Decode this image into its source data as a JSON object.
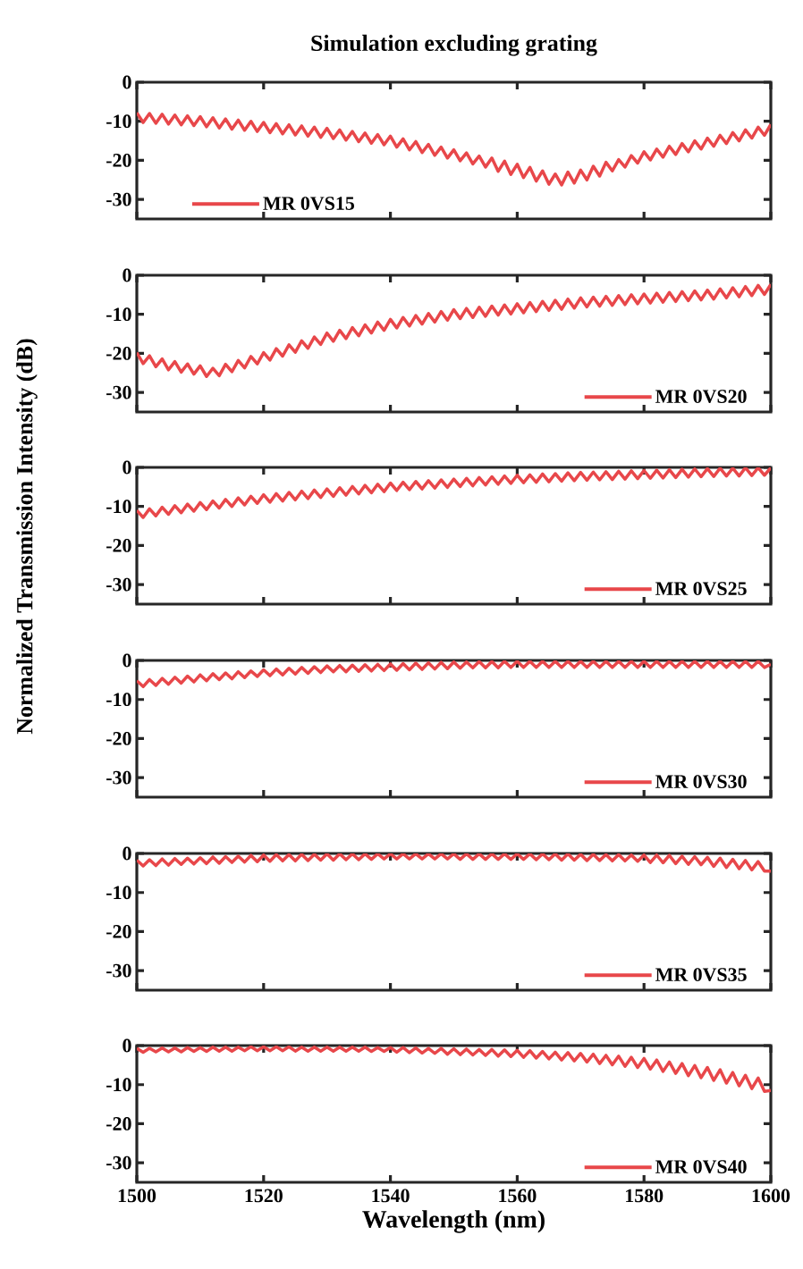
{
  "chart_data": [
    {
      "type": "line",
      "title": "Simulation excluding grating",
      "ylabel": "Normalized Transmission Intensity (dB)",
      "xlim": [
        1500,
        1600
      ],
      "xticks": [
        1500,
        1520,
        1540,
        1560,
        1580,
        1600
      ],
      "ylim": [
        -35,
        0
      ],
      "yticks": [
        -30,
        -20,
        -10,
        0
      ],
      "tick_labels": "y",
      "legend": "bottom left",
      "x": [
        1500,
        1501,
        1502,
        1503,
        1504,
        1505,
        1506,
        1507,
        1508,
        1509,
        1510,
        1511,
        1512,
        1513,
        1514,
        1515,
        1516,
        1517,
        1518,
        1519,
        1520,
        1521,
        1522,
        1523,
        1524,
        1525,
        1526,
        1527,
        1528,
        1529,
        1530,
        1531,
        1532,
        1533,
        1534,
        1535,
        1536,
        1537,
        1538,
        1539,
        1540,
        1541,
        1542,
        1543,
        1544,
        1545,
        1546,
        1547,
        1548,
        1549,
        1550,
        1551,
        1552,
        1553,
        1554,
        1555,
        1556,
        1557,
        1558,
        1559,
        1560,
        1561,
        1562,
        1563,
        1564,
        1565,
        1566,
        1567,
        1568,
        1569,
        1570,
        1571,
        1572,
        1573,
        1574,
        1575,
        1576,
        1577,
        1578,
        1579,
        1580,
        1581,
        1582,
        1583,
        1584,
        1585,
        1586,
        1587,
        1588,
        1589,
        1590,
        1591,
        1592,
        1593,
        1594,
        1595,
        1596,
        1597,
        1598,
        1599,
        1600
      ],
      "series": [
        {
          "name": "MR 0VS15",
          "color": "#e8474a",
          "values": [
            -7.8,
            -10.3,
            -8.0,
            -10.5,
            -8.2,
            -10.7,
            -8.4,
            -10.9,
            -8.6,
            -11.1,
            -8.8,
            -11.4,
            -9.1,
            -11.7,
            -9.4,
            -12.0,
            -9.7,
            -12.3,
            -10.0,
            -12.6,
            -10.3,
            -12.9,
            -10.6,
            -13.2,
            -10.9,
            -13.5,
            -11.2,
            -13.8,
            -11.5,
            -14.1,
            -11.8,
            -14.4,
            -12.2,
            -14.8,
            -12.6,
            -15.2,
            -13.0,
            -15.6,
            -13.4,
            -16.0,
            -13.8,
            -16.6,
            -14.5,
            -17.3,
            -15.2,
            -18.0,
            -15.9,
            -18.7,
            -16.6,
            -19.4,
            -17.3,
            -20.1,
            -18.1,
            -20.9,
            -18.9,
            -21.7,
            -19.4,
            -22.8,
            -20.2,
            -23.6,
            -21.0,
            -24.4,
            -21.8,
            -25.3,
            -22.7,
            -26.1,
            -23.5,
            -26.3,
            -23.0,
            -25.8,
            -22.5,
            -25.0,
            -21.5,
            -24.0,
            -20.5,
            -22.7,
            -19.8,
            -21.7,
            -18.8,
            -20.7,
            -17.8,
            -19.9,
            -17.1,
            -19.2,
            -16.4,
            -18.5,
            -15.7,
            -17.8,
            -15.0,
            -17.1,
            -14.3,
            -16.4,
            -13.6,
            -15.7,
            -12.9,
            -15.0,
            -12.2,
            -14.3,
            -11.5,
            -13.6,
            -10.8
          ]
        }
      ]
    },
    {
      "type": "line",
      "xlim": [
        1500,
        1600
      ],
      "xticks": [
        1500,
        1520,
        1540,
        1560,
        1580,
        1600
      ],
      "ylim": [
        -35,
        0
      ],
      "yticks": [
        -30,
        -20,
        -10,
        0
      ],
      "tick_labels": "y",
      "legend": "bottom right",
      "x": [
        1500,
        1501,
        1502,
        1503,
        1504,
        1505,
        1506,
        1507,
        1508,
        1509,
        1510,
        1511,
        1512,
        1513,
        1514,
        1515,
        1516,
        1517,
        1518,
        1519,
        1520,
        1521,
        1522,
        1523,
        1524,
        1525,
        1526,
        1527,
        1528,
        1529,
        1530,
        1531,
        1532,
        1533,
        1534,
        1535,
        1536,
        1537,
        1538,
        1539,
        1540,
        1541,
        1542,
        1543,
        1544,
        1545,
        1546,
        1547,
        1548,
        1549,
        1550,
        1551,
        1552,
        1553,
        1554,
        1555,
        1556,
        1557,
        1558,
        1559,
        1560,
        1561,
        1562,
        1563,
        1564,
        1565,
        1566,
        1567,
        1568,
        1569,
        1570,
        1571,
        1572,
        1573,
        1574,
        1575,
        1576,
        1577,
        1578,
        1579,
        1580,
        1581,
        1582,
        1583,
        1584,
        1585,
        1586,
        1587,
        1588,
        1589,
        1590,
        1591,
        1592,
        1593,
        1594,
        1595,
        1596,
        1597,
        1598,
        1599,
        1600
      ],
      "series": [
        {
          "name": "MR 0VS20",
          "color": "#e8474a",
          "values": [
            -19.8,
            -22.6,
            -20.6,
            -23.4,
            -21.4,
            -24.2,
            -22.1,
            -24.8,
            -22.7,
            -25.3,
            -23.2,
            -25.9,
            -23.8,
            -25.7,
            -22.8,
            -24.7,
            -21.8,
            -23.7,
            -20.8,
            -22.7,
            -19.8,
            -21.7,
            -18.8,
            -20.7,
            -17.8,
            -19.7,
            -16.8,
            -18.7,
            -15.8,
            -17.7,
            -14.8,
            -16.9,
            -14.1,
            -16.2,
            -13.4,
            -15.5,
            -12.7,
            -14.8,
            -12.0,
            -14.1,
            -11.3,
            -13.5,
            -10.8,
            -13.0,
            -10.3,
            -12.5,
            -9.8,
            -12.0,
            -9.3,
            -11.5,
            -8.8,
            -11.1,
            -8.5,
            -10.8,
            -8.2,
            -10.5,
            -7.9,
            -10.2,
            -7.6,
            -9.9,
            -7.3,
            -9.6,
            -7.0,
            -9.3,
            -6.7,
            -9.0,
            -6.4,
            -8.7,
            -6.1,
            -8.4,
            -5.8,
            -8.1,
            -5.6,
            -7.9,
            -5.4,
            -7.7,
            -5.2,
            -7.5,
            -5.0,
            -7.3,
            -4.8,
            -7.1,
            -4.6,
            -6.9,
            -4.4,
            -6.7,
            -4.2,
            -6.5,
            -4.0,
            -6.3,
            -3.8,
            -6.1,
            -3.5,
            -5.8,
            -3.2,
            -5.5,
            -2.9,
            -5.2,
            -2.6,
            -4.9,
            -2.3
          ]
        }
      ]
    },
    {
      "type": "line",
      "xlim": [
        1500,
        1600
      ],
      "xticks": [
        1500,
        1520,
        1540,
        1560,
        1580,
        1600
      ],
      "ylim": [
        -35,
        0
      ],
      "yticks": [
        -30,
        -20,
        -10,
        0
      ],
      "tick_labels": "y",
      "legend": "bottom right",
      "x": [
        1500,
        1501,
        1502,
        1503,
        1504,
        1505,
        1506,
        1507,
        1508,
        1509,
        1510,
        1511,
        1512,
        1513,
        1514,
        1515,
        1516,
        1517,
        1518,
        1519,
        1520,
        1521,
        1522,
        1523,
        1524,
        1525,
        1526,
        1527,
        1528,
        1529,
        1530,
        1531,
        1532,
        1533,
        1534,
        1535,
        1536,
        1537,
        1538,
        1539,
        1540,
        1541,
        1542,
        1543,
        1544,
        1545,
        1546,
        1547,
        1548,
        1549,
        1550,
        1551,
        1552,
        1553,
        1554,
        1555,
        1556,
        1557,
        1558,
        1559,
        1560,
        1561,
        1562,
        1563,
        1564,
        1565,
        1566,
        1567,
        1568,
        1569,
        1570,
        1571,
        1572,
        1573,
        1574,
        1575,
        1576,
        1577,
        1578,
        1579,
        1580,
        1581,
        1582,
        1583,
        1584,
        1585,
        1586,
        1587,
        1588,
        1589,
        1590,
        1591,
        1592,
        1593,
        1594,
        1595,
        1596,
        1597,
        1598,
        1599,
        1600
      ],
      "series": [
        {
          "name": "MR 0VS25",
          "color": "#e8474a",
          "values": [
            -11.0,
            -12.8,
            -10.6,
            -12.4,
            -10.2,
            -12.0,
            -9.8,
            -11.6,
            -9.4,
            -11.2,
            -9.0,
            -10.8,
            -8.6,
            -10.4,
            -8.2,
            -10.0,
            -7.8,
            -9.6,
            -7.4,
            -9.2,
            -7.0,
            -8.9,
            -6.7,
            -8.6,
            -6.4,
            -8.3,
            -6.1,
            -8.0,
            -5.8,
            -7.7,
            -5.5,
            -7.4,
            -5.2,
            -7.1,
            -4.9,
            -6.8,
            -4.6,
            -6.5,
            -4.3,
            -6.2,
            -4.0,
            -5.9,
            -3.8,
            -5.7,
            -3.6,
            -5.5,
            -3.4,
            -5.3,
            -3.2,
            -5.1,
            -3.0,
            -4.9,
            -2.8,
            -4.7,
            -2.6,
            -4.5,
            -2.4,
            -4.3,
            -2.2,
            -4.1,
            -2.0,
            -3.9,
            -1.9,
            -3.8,
            -1.7,
            -3.7,
            -1.6,
            -3.5,
            -1.4,
            -3.4,
            -1.3,
            -3.3,
            -1.2,
            -3.2,
            -1.1,
            -3.1,
            -1.0,
            -3.0,
            -0.9,
            -2.9,
            -0.8,
            -2.8,
            -0.7,
            -2.7,
            -0.6,
            -2.6,
            -0.5,
            -2.5,
            -0.4,
            -2.4,
            -0.3,
            -2.3,
            -0.2,
            -2.2,
            -0.2,
            -2.2,
            -0.1,
            -2.1,
            -0.1,
            -2.0,
            -0.1
          ]
        }
      ]
    },
    {
      "type": "line",
      "xlim": [
        1500,
        1600
      ],
      "xticks": [
        1500,
        1520,
        1540,
        1560,
        1580,
        1600
      ],
      "ylim": [
        -35,
        0
      ],
      "yticks": [
        -30,
        -20,
        -10,
        0
      ],
      "tick_labels": "y",
      "legend": "bottom right",
      "x": [
        1500,
        1501,
        1502,
        1503,
        1504,
        1505,
        1506,
        1507,
        1508,
        1509,
        1510,
        1511,
        1512,
        1513,
        1514,
        1515,
        1516,
        1517,
        1518,
        1519,
        1520,
        1521,
        1522,
        1523,
        1524,
        1525,
        1526,
        1527,
        1528,
        1529,
        1530,
        1531,
        1532,
        1533,
        1534,
        1535,
        1536,
        1537,
        1538,
        1539,
        1540,
        1541,
        1542,
        1543,
        1544,
        1545,
        1546,
        1547,
        1548,
        1549,
        1550,
        1551,
        1552,
        1553,
        1554,
        1555,
        1556,
        1557,
        1558,
        1559,
        1560,
        1561,
        1562,
        1563,
        1564,
        1565,
        1566,
        1567,
        1568,
        1569,
        1570,
        1571,
        1572,
        1573,
        1574,
        1575,
        1576,
        1577,
        1578,
        1579,
        1580,
        1581,
        1582,
        1583,
        1584,
        1585,
        1586,
        1587,
        1588,
        1589,
        1590,
        1591,
        1592,
        1593,
        1594,
        1595,
        1596,
        1597,
        1598,
        1599,
        1600
      ],
      "series": [
        {
          "name": "MR 0VS30",
          "color": "#e8474a",
          "values": [
            -5.2,
            -6.7,
            -4.9,
            -6.4,
            -4.6,
            -6.1,
            -4.3,
            -5.8,
            -4.0,
            -5.5,
            -3.7,
            -5.2,
            -3.4,
            -4.9,
            -3.2,
            -4.7,
            -2.9,
            -4.4,
            -2.7,
            -4.1,
            -2.4,
            -3.9,
            -2.2,
            -3.7,
            -2.0,
            -3.5,
            -1.8,
            -3.3,
            -1.6,
            -3.1,
            -1.4,
            -2.9,
            -1.3,
            -2.9,
            -1.2,
            -2.8,
            -1.1,
            -2.7,
            -1.0,
            -2.6,
            -0.9,
            -2.5,
            -0.8,
            -2.4,
            -0.7,
            -2.3,
            -0.6,
            -2.2,
            -0.5,
            -2.1,
            -0.4,
            -2.0,
            -0.4,
            -1.9,
            -0.3,
            -1.9,
            -0.3,
            -1.9,
            -0.2,
            -1.8,
            -0.2,
            -1.8,
            -0.2,
            -1.8,
            -0.2,
            -1.8,
            -0.2,
            -1.8,
            -0.2,
            -1.8,
            -0.2,
            -1.8,
            -0.2,
            -1.8,
            -0.2,
            -1.8,
            -0.2,
            -1.8,
            -0.2,
            -1.8,
            -0.2,
            -1.8,
            -0.2,
            -1.8,
            -0.2,
            -1.8,
            -0.2,
            -1.8,
            -0.2,
            -1.8,
            -0.2,
            -1.8,
            -0.2,
            -1.8,
            -0.2,
            -1.8,
            -0.2,
            -1.8,
            -0.2,
            -1.8,
            -1.0
          ]
        }
      ]
    },
    {
      "type": "line",
      "xlim": [
        1500,
        1600
      ],
      "xticks": [
        1500,
        1520,
        1540,
        1560,
        1580,
        1600
      ],
      "ylim": [
        -35,
        0
      ],
      "yticks": [
        -30,
        -20,
        -10,
        0
      ],
      "tick_labels": "y",
      "legend": "bottom right",
      "x": [
        1500,
        1501,
        1502,
        1503,
        1504,
        1505,
        1506,
        1507,
        1508,
        1509,
        1510,
        1511,
        1512,
        1513,
        1514,
        1515,
        1516,
        1517,
        1518,
        1519,
        1520,
        1521,
        1522,
        1523,
        1524,
        1525,
        1526,
        1527,
        1528,
        1529,
        1530,
        1531,
        1532,
        1533,
        1534,
        1535,
        1536,
        1537,
        1538,
        1539,
        1540,
        1541,
        1542,
        1543,
        1544,
        1545,
        1546,
        1547,
        1548,
        1549,
        1550,
        1551,
        1552,
        1553,
        1554,
        1555,
        1556,
        1557,
        1558,
        1559,
        1560,
        1561,
        1562,
        1563,
        1564,
        1565,
        1566,
        1567,
        1568,
        1569,
        1570,
        1571,
        1572,
        1573,
        1574,
        1575,
        1576,
        1577,
        1578,
        1579,
        1580,
        1581,
        1582,
        1583,
        1584,
        1585,
        1586,
        1587,
        1588,
        1589,
        1590,
        1591,
        1592,
        1593,
        1594,
        1595,
        1596,
        1597,
        1598,
        1599,
        1600
      ],
      "series": [
        {
          "name": "MR 0VS35",
          "color": "#e8474a",
          "values": [
            -1.7,
            -3.2,
            -1.6,
            -3.1,
            -1.4,
            -3.0,
            -1.3,
            -2.8,
            -1.2,
            -2.7,
            -1.1,
            -2.6,
            -0.9,
            -2.5,
            -0.8,
            -2.3,
            -0.7,
            -2.2,
            -0.5,
            -2.1,
            -0.4,
            -2.0,
            -0.3,
            -1.9,
            -0.3,
            -1.9,
            -0.2,
            -1.8,
            -0.2,
            -1.7,
            -0.1,
            -1.7,
            -0.1,
            -1.6,
            -0.1,
            -1.6,
            -0.1,
            -1.5,
            -0.1,
            -1.4,
            -0.1,
            -1.4,
            -0.1,
            -1.4,
            -0.1,
            -1.4,
            -0.1,
            -1.4,
            -0.1,
            -1.4,
            -0.1,
            -1.5,
            -0.1,
            -1.5,
            -0.1,
            -1.5,
            -0.1,
            -1.5,
            -0.1,
            -1.5,
            -0.1,
            -1.5,
            -0.1,
            -1.6,
            -0.1,
            -1.6,
            -0.1,
            -1.7,
            -0.1,
            -1.7,
            -0.2,
            -1.8,
            -0.2,
            -1.8,
            -0.3,
            -1.9,
            -0.3,
            -1.9,
            -0.4,
            -2.0,
            -0.4,
            -2.3,
            -0.4,
            -2.4,
            -0.5,
            -2.6,
            -0.7,
            -2.8,
            -0.8,
            -2.9,
            -1.0,
            -3.3,
            -1.2,
            -3.6,
            -1.5,
            -3.9,
            -1.8,
            -4.2,
            -2.1,
            -4.5,
            -4.5
          ]
        }
      ]
    },
    {
      "type": "line",
      "xlabel": "Wavelength (nm)",
      "xlim": [
        1500,
        1600
      ],
      "xticks": [
        1500,
        1520,
        1540,
        1560,
        1580,
        1600
      ],
      "ylim": [
        -35,
        0
      ],
      "yticks": [
        -30,
        -20,
        -10,
        0
      ],
      "legend": "bottom right",
      "x": [
        1500,
        1501,
        1502,
        1503,
        1504,
        1505,
        1506,
        1507,
        1508,
        1509,
        1510,
        1511,
        1512,
        1513,
        1514,
        1515,
        1516,
        1517,
        1518,
        1519,
        1520,
        1521,
        1522,
        1523,
        1524,
        1525,
        1526,
        1527,
        1528,
        1529,
        1530,
        1531,
        1532,
        1533,
        1534,
        1535,
        1536,
        1537,
        1538,
        1539,
        1540,
        1541,
        1542,
        1543,
        1544,
        1545,
        1546,
        1547,
        1548,
        1549,
        1550,
        1551,
        1552,
        1553,
        1554,
        1555,
        1556,
        1557,
        1558,
        1559,
        1560,
        1561,
        1562,
        1563,
        1564,
        1565,
        1566,
        1567,
        1568,
        1569,
        1570,
        1571,
        1572,
        1573,
        1574,
        1575,
        1576,
        1577,
        1578,
        1579,
        1580,
        1581,
        1582,
        1583,
        1584,
        1585,
        1586,
        1587,
        1588,
        1589,
        1590,
        1591,
        1592,
        1593,
        1594,
        1595,
        1596,
        1597,
        1598,
        1599,
        1600
      ],
      "series": [
        {
          "name": "MR 0VS40",
          "color": "#e8474a",
          "values": [
            -0.7,
            -1.7,
            -0.7,
            -1.6,
            -0.6,
            -1.6,
            -0.6,
            -1.6,
            -0.5,
            -1.5,
            -0.5,
            -1.5,
            -0.4,
            -1.4,
            -0.4,
            -1.4,
            -0.4,
            -1.3,
            -0.3,
            -1.3,
            -0.3,
            -1.3,
            -0.3,
            -1.3,
            -0.3,
            -1.4,
            -0.4,
            -1.4,
            -0.4,
            -1.4,
            -0.4,
            -1.4,
            -0.4,
            -1.4,
            -0.4,
            -1.4,
            -0.4,
            -1.5,
            -0.5,
            -1.5,
            -0.5,
            -1.7,
            -0.5,
            -1.8,
            -0.6,
            -1.9,
            -0.7,
            -2.0,
            -0.7,
            -2.2,
            -0.8,
            -2.3,
            -0.9,
            -2.4,
            -1.0,
            -2.5,
            -1.0,
            -2.7,
            -1.1,
            -2.8,
            -1.2,
            -3.0,
            -1.3,
            -3.2,
            -1.5,
            -3.4,
            -1.7,
            -3.7,
            -1.8,
            -3.9,
            -2.0,
            -4.2,
            -2.2,
            -4.6,
            -2.5,
            -4.9,
            -2.7,
            -5.3,
            -3.0,
            -5.6,
            -3.3,
            -6.0,
            -3.7,
            -6.6,
            -4.2,
            -7.1,
            -4.6,
            -7.7,
            -5.1,
            -8.2,
            -5.6,
            -8.9,
            -6.2,
            -9.6,
            -6.9,
            -10.3,
            -7.6,
            -11.0,
            -8.3,
            -11.7,
            -11.5
          ]
        }
      ]
    }
  ]
}
